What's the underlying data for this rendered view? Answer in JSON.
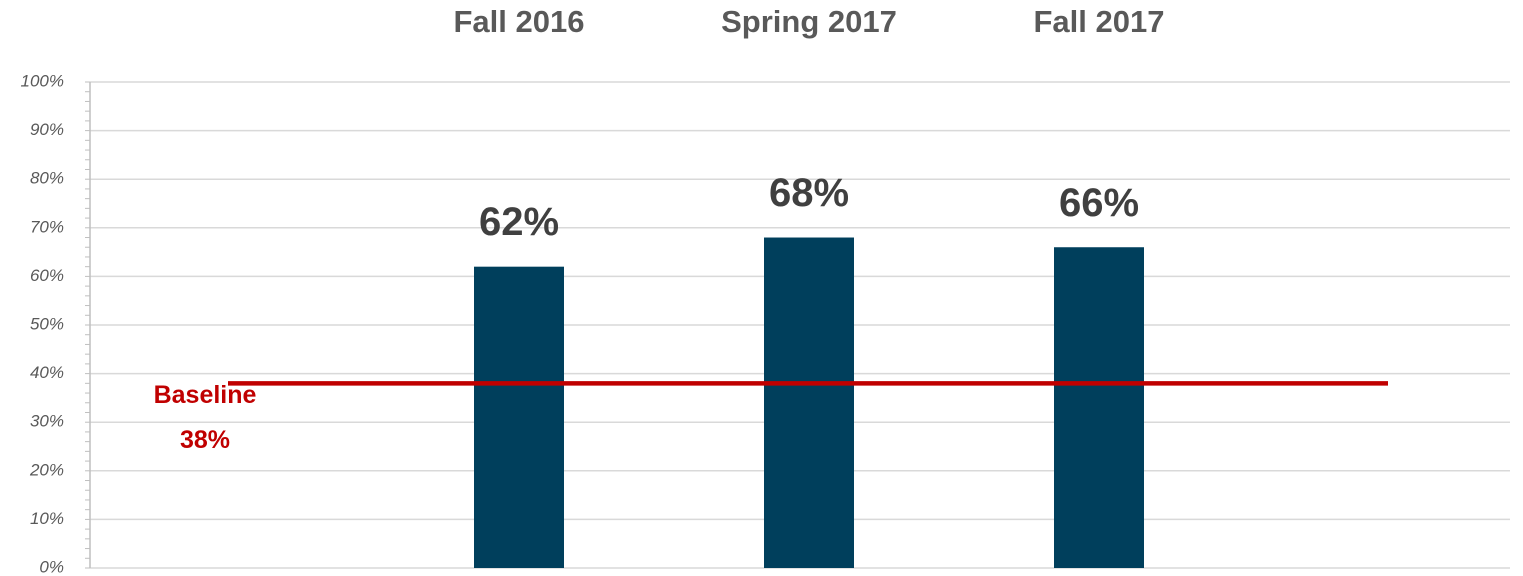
{
  "chart_data": {
    "type": "bar",
    "categories": [
      "Fall 2016",
      "Spring 2017",
      "Fall 2017"
    ],
    "values": [
      62,
      68,
      66
    ],
    "value_labels": [
      "62%",
      "68%",
      "66%"
    ],
    "color": "#003f5c",
    "ylim": [
      0,
      100
    ],
    "yticks": [
      {
        "value": 0,
        "label": "0%"
      },
      {
        "value": 10,
        "label": "10%"
      },
      {
        "value": 20,
        "label": "20%"
      },
      {
        "value": 30,
        "label": "30%"
      },
      {
        "value": 40,
        "label": "40%"
      },
      {
        "value": 50,
        "label": "50%"
      },
      {
        "value": 60,
        "label": "60%"
      },
      {
        "value": 70,
        "label": "70%"
      },
      {
        "value": 80,
        "label": "80%"
      },
      {
        "value": 90,
        "label": "90%"
      },
      {
        "value": 100,
        "label": "100%"
      }
    ],
    "grid": true,
    "baseline": {
      "label": "Baseline",
      "value": 38,
      "value_label": "38%",
      "color": "#c00000"
    }
  }
}
